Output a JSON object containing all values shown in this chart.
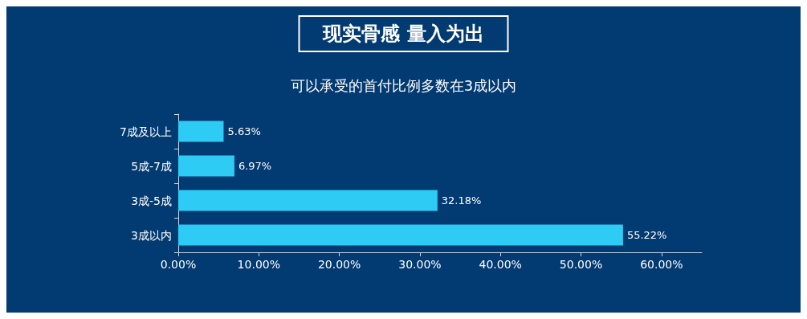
{
  "chart_data": {
    "type": "bar",
    "orientation": "horizontal",
    "title": "现实骨感 量入为出",
    "subtitle": "可以承受的首付比例多数在3成以内",
    "categories": [
      "7成及以上",
      "5成-7成",
      "3成-5成",
      "3成以内"
    ],
    "values": [
      5.63,
      6.97,
      32.18,
      55.22
    ],
    "value_labels": [
      "5.63%",
      "6.97%",
      "32.18%",
      "55.22%"
    ],
    "color": "#2ecbf5",
    "xlim": [
      0,
      65
    ],
    "xticks": [
      {
        "value": 0,
        "label": "0.00%"
      },
      {
        "value": 10,
        "label": "10.00%"
      },
      {
        "value": 20,
        "label": "20.00%"
      },
      {
        "value": 30,
        "label": "30.00%"
      },
      {
        "value": 40,
        "label": "40.00%"
      },
      {
        "value": 50,
        "label": "50.00%"
      },
      {
        "value": 60,
        "label": "60.00%"
      }
    ],
    "grid": false
  }
}
